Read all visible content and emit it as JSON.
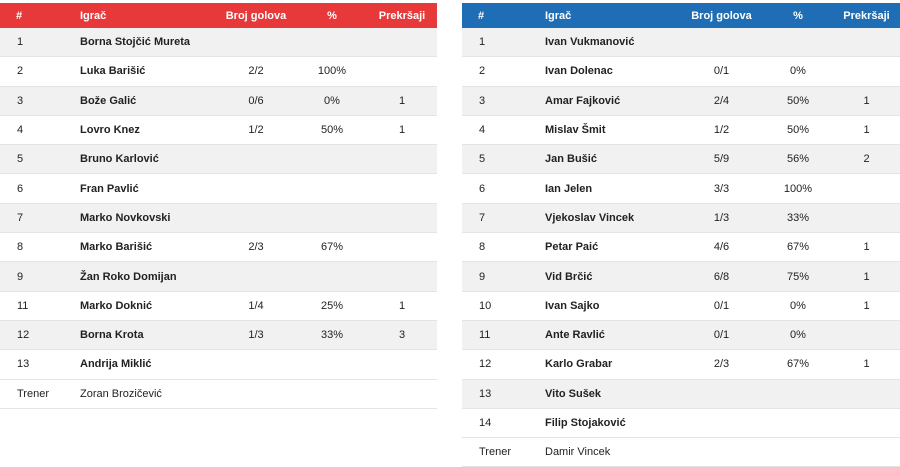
{
  "headers": {
    "num": "#",
    "player": "Igrač",
    "goals": "Broj golova",
    "pct": "%",
    "fouls": "Prekršaji"
  },
  "left_team": {
    "accent": "#e8393a",
    "players": [
      {
        "num": "1",
        "name": "Borna Stojčić Mureta",
        "goals": "",
        "pct": "",
        "fouls": ""
      },
      {
        "num": "2",
        "name": "Luka Barišić",
        "goals": "2/2",
        "pct": "100%",
        "fouls": ""
      },
      {
        "num": "3",
        "name": "Bože Galić",
        "goals": "0/6",
        "pct": "0%",
        "fouls": "1"
      },
      {
        "num": "4",
        "name": "Lovro Knez",
        "goals": "1/2",
        "pct": "50%",
        "fouls": "1"
      },
      {
        "num": "5",
        "name": "Bruno Karlović",
        "goals": "",
        "pct": "",
        "fouls": ""
      },
      {
        "num": "6",
        "name": "Fran Pavlić",
        "goals": "",
        "pct": "",
        "fouls": ""
      },
      {
        "num": "7",
        "name": "Marko Novkovski",
        "goals": "",
        "pct": "",
        "fouls": ""
      },
      {
        "num": "8",
        "name": "Marko Barišić",
        "goals": "2/3",
        "pct": "67%",
        "fouls": ""
      },
      {
        "num": "9",
        "name": "Žan Roko Domijan",
        "goals": "",
        "pct": "",
        "fouls": ""
      },
      {
        "num": "11",
        "name": "Marko Doknić",
        "goals": "1/4",
        "pct": "25%",
        "fouls": "1"
      },
      {
        "num": "12",
        "name": "Borna Krota",
        "goals": "1/3",
        "pct": "33%",
        "fouls": "3"
      },
      {
        "num": "13",
        "name": "Andrija Miklić",
        "goals": "",
        "pct": "",
        "fouls": ""
      }
    ],
    "coach_label": "Trener",
    "coach_name": "Zoran Brozičević"
  },
  "right_team": {
    "accent": "#1f6eb5",
    "players": [
      {
        "num": "1",
        "name": "Ivan Vukmanović",
        "goals": "",
        "pct": "",
        "fouls": ""
      },
      {
        "num": "2",
        "name": "Ivan Dolenac",
        "goals": "0/1",
        "pct": "0%",
        "fouls": ""
      },
      {
        "num": "3",
        "name": "Amar Fajković",
        "goals": "2/4",
        "pct": "50%",
        "fouls": "1"
      },
      {
        "num": "4",
        "name": "Mislav Šmit",
        "goals": "1/2",
        "pct": "50%",
        "fouls": "1"
      },
      {
        "num": "5",
        "name": "Jan Bušić",
        "goals": "5/9",
        "pct": "56%",
        "fouls": "2"
      },
      {
        "num": "6",
        "name": "Ian Jelen",
        "goals": "3/3",
        "pct": "100%",
        "fouls": ""
      },
      {
        "num": "7",
        "name": "Vjekoslav Vincek",
        "goals": "1/3",
        "pct": "33%",
        "fouls": ""
      },
      {
        "num": "8",
        "name": "Petar Paić",
        "goals": "4/6",
        "pct": "67%",
        "fouls": "1"
      },
      {
        "num": "9",
        "name": "Vid Brčić",
        "goals": "6/8",
        "pct": "75%",
        "fouls": "1"
      },
      {
        "num": "10",
        "name": "Ivan Sajko",
        "goals": "0/1",
        "pct": "0%",
        "fouls": "1"
      },
      {
        "num": "11",
        "name": "Ante Ravlić",
        "goals": "0/1",
        "pct": "0%",
        "fouls": ""
      },
      {
        "num": "12",
        "name": "Karlo Grabar",
        "goals": "2/3",
        "pct": "67%",
        "fouls": "1"
      },
      {
        "num": "13",
        "name": "Vito Sušek",
        "goals": "",
        "pct": "",
        "fouls": ""
      },
      {
        "num": "14",
        "name": "Filip Stojaković",
        "goals": "",
        "pct": "",
        "fouls": ""
      }
    ],
    "coach_label": "Trener",
    "coach_name": "Damir Vincek"
  }
}
